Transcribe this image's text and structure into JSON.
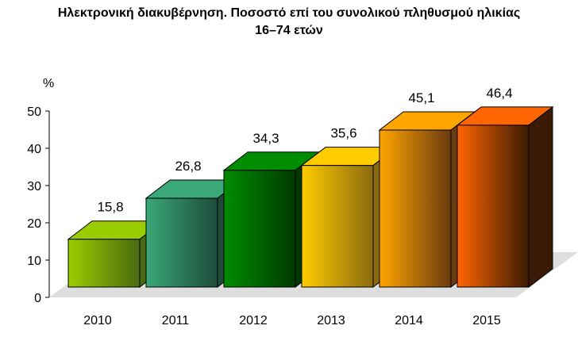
{
  "chart_data": {
    "type": "bar",
    "title_line1": "Ηλεκτρονική διακυβέρνηση.  Ποσοστό επί του συνολικού πληθυσμού ηλικίας",
    "title_line2": "16–74 ετών",
    "ylabel": "%",
    "ylim": [
      0,
      50
    ],
    "yticks": [
      0,
      10,
      20,
      30,
      40,
      50
    ],
    "grid": false,
    "categories": [
      "2010",
      "2011",
      "2012",
      "2013",
      "2014",
      "2015"
    ],
    "values": [
      15.8,
      26.8,
      34.3,
      35.6,
      45.1,
      46.4
    ],
    "value_labels": [
      "15,8",
      "26,8",
      "34,3",
      "35,6",
      "45,1",
      "46,4"
    ],
    "bar_colors": [
      {
        "light": "#9acd00",
        "dark": "#4a6a10"
      },
      {
        "light": "#3aa878",
        "dark": "#1e4a3a"
      },
      {
        "light": "#008c00",
        "dark": "#003a00"
      },
      {
        "light": "#ffcc00",
        "dark": "#8a6a10"
      },
      {
        "light": "#ffa500",
        "dark": "#6a3a10"
      },
      {
        "light": "#ff6600",
        "dark": "#3a1a05"
      }
    ]
  }
}
